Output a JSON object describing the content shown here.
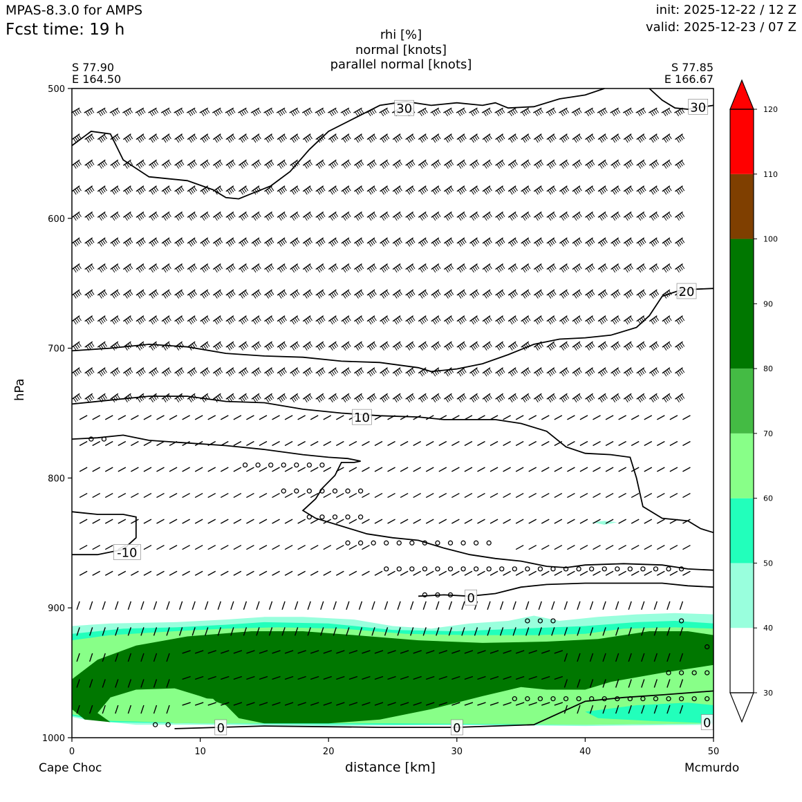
{
  "header": {
    "model": "MPAS-8.3.0 for AMPS",
    "fcst_time": "Fcst time:   19 h",
    "init": "init: 2025-12-22 / 12 Z",
    "valid": "valid: 2025-12-23 / 07 Z"
  },
  "title": {
    "line1": "rhi [%]",
    "line2": "normal [knots]",
    "line3": "parallel normal [knots]"
  },
  "endpoints": {
    "left_lat": "S 77.90",
    "left_lon": "E 164.50",
    "right_lat": "S 77.85",
    "right_lon": "E 166.67"
  },
  "locations": {
    "left": "Cape Choc",
    "right": "Mcmurdo"
  },
  "chart_data": {
    "type": "cross-section contour",
    "xlabel": "distance [km]",
    "ylabel": "hPa",
    "xlim": [
      0,
      50
    ],
    "ylim": [
      1000,
      500
    ],
    "x_ticks": [
      0,
      10,
      20,
      30,
      40,
      50
    ],
    "y_ticks": [
      500,
      600,
      700,
      800,
      900,
      1000
    ],
    "colorbar": {
      "ticks": [
        30,
        40,
        50,
        60,
        70,
        80,
        90,
        100,
        110,
        120
      ],
      "bins": [
        {
          "from": 30,
          "to": 40,
          "color": "#ffffff"
        },
        {
          "from": 40,
          "to": 50,
          "color": "#99ffdd"
        },
        {
          "from": 50,
          "to": 60,
          "color": "#22ffbb"
        },
        {
          "from": 60,
          "to": 70,
          "color": "#88ff88"
        },
        {
          "from": 70,
          "to": 80,
          "color": "#44bb44"
        },
        {
          "from": 80,
          "to": 100,
          "color": "#007700"
        },
        {
          "from": 100,
          "to": 110,
          "color": "#7f3f00"
        },
        {
          "from": 110,
          "to": 120,
          "color": "#ff0000"
        }
      ],
      "extend": "both"
    },
    "contour_labels": [
      {
        "text": "30",
        "x": 25.9,
        "p": 515
      },
      {
        "text": "30",
        "x": 48.8,
        "p": 514
      },
      {
        "text": "20",
        "x": 47.9,
        "p": 656
      },
      {
        "text": "10",
        "x": 22.6,
        "p": 753
      },
      {
        "text": "-10",
        "x": 4.3,
        "p": 857
      },
      {
        "text": "0",
        "x": 31.1,
        "p": 892
      },
      {
        "text": "0",
        "x": 11.6,
        "p": 992
      },
      {
        "text": "0",
        "x": 30.0,
        "p": 992
      },
      {
        "text": "0",
        "x": 49.5,
        "p": 988
      }
    ],
    "contours": [
      {
        "label": "30",
        "points": [
          [
            0,
            544
          ],
          [
            1.5,
            533
          ],
          [
            3,
            535
          ],
          [
            4,
            555
          ],
          [
            6,
            568
          ],
          [
            9,
            571
          ],
          [
            11,
            578
          ],
          [
            12,
            584
          ],
          [
            13,
            585
          ],
          [
            14,
            581
          ],
          [
            15.5,
            575
          ],
          [
            17,
            564
          ],
          [
            18.5,
            547
          ],
          [
            20,
            533
          ],
          [
            22,
            523
          ],
          [
            24,
            513
          ],
          [
            26,
            510
          ],
          [
            28,
            513
          ],
          [
            30,
            511
          ],
          [
            32,
            513
          ],
          [
            33,
            511
          ],
          [
            34,
            515
          ],
          [
            36,
            514
          ],
          [
            38,
            508
          ],
          [
            40,
            505
          ],
          [
            41.5,
            500
          ]
        ]
      },
      {
        "label": "30",
        "points": [
          [
            45,
            500
          ],
          [
            46,
            509
          ],
          [
            47,
            515
          ],
          [
            48,
            516
          ],
          [
            50,
            513
          ]
        ]
      },
      {
        "label": "20",
        "points": [
          [
            0,
            702
          ],
          [
            3,
            700
          ],
          [
            6,
            697
          ],
          [
            9,
            699
          ],
          [
            12,
            704
          ],
          [
            15,
            706
          ],
          [
            18,
            707
          ],
          [
            21,
            710
          ],
          [
            24,
            711
          ],
          [
            27,
            715
          ],
          [
            28,
            718
          ],
          [
            30,
            716
          ],
          [
            32,
            712
          ],
          [
            34,
            705
          ],
          [
            36,
            697
          ],
          [
            38,
            693
          ],
          [
            40,
            692
          ],
          [
            42,
            690
          ],
          [
            44,
            684
          ],
          [
            45,
            675
          ],
          [
            46,
            660
          ],
          [
            47.5,
            655
          ],
          [
            50,
            654
          ]
        ]
      },
      {
        "label": "10",
        "points": [
          [
            0,
            743
          ],
          [
            3,
            740
          ],
          [
            6,
            737
          ],
          [
            9,
            737
          ],
          [
            12,
            741
          ],
          [
            15,
            742
          ],
          [
            18,
            747
          ],
          [
            21,
            750
          ],
          [
            24,
            752
          ],
          [
            27,
            753
          ],
          [
            29,
            755
          ],
          [
            31,
            755
          ],
          [
            33,
            755
          ],
          [
            35,
            758
          ],
          [
            37,
            764
          ],
          [
            38.5,
            776
          ],
          [
            40,
            781
          ],
          [
            42,
            782
          ],
          [
            43.5,
            784
          ],
          [
            44,
            800
          ],
          [
            44.5,
            822
          ],
          [
            46,
            831
          ],
          [
            48,
            833
          ],
          [
            49,
            839
          ],
          [
            50,
            842
          ]
        ]
      },
      {
        "label": "-10",
        "points": [
          [
            0,
            770
          ],
          [
            2,
            769
          ],
          [
            4,
            767
          ],
          [
            6,
            771
          ],
          [
            9,
            773
          ],
          [
            12,
            775
          ],
          [
            15,
            778
          ],
          [
            18,
            782
          ],
          [
            20,
            784
          ],
          [
            21.5,
            785
          ],
          [
            22.5,
            787
          ],
          [
            22,
            788
          ],
          [
            21,
            788
          ],
          [
            20.5,
            798
          ],
          [
            19.5,
            808
          ],
          [
            19,
            816
          ],
          [
            18,
            825
          ],
          [
            19,
            831
          ],
          [
            21,
            837
          ],
          [
            23,
            843
          ],
          [
            25,
            846
          ],
          [
            27,
            848
          ],
          [
            29,
            854
          ],
          [
            31,
            859
          ],
          [
            33,
            862
          ],
          [
            35,
            864
          ],
          [
            37,
            868
          ],
          [
            38.5,
            869
          ],
          [
            40,
            867
          ],
          [
            43,
            866
          ],
          [
            46,
            867
          ],
          [
            48,
            870
          ],
          [
            50,
            871
          ]
        ]
      },
      {
        "label": "-10",
        "points": [
          [
            0,
            826
          ],
          [
            2,
            828
          ],
          [
            4,
            828
          ],
          [
            5,
            830
          ],
          [
            5,
            846
          ],
          [
            4,
            855
          ],
          [
            2,
            859
          ],
          [
            0,
            859
          ]
        ]
      },
      {
        "label": "0",
        "points": [
          [
            27,
            891
          ],
          [
            29,
            890
          ],
          [
            31,
            891
          ],
          [
            33,
            889
          ],
          [
            35,
            884
          ],
          [
            37,
            882
          ],
          [
            40,
            881
          ],
          [
            43,
            881
          ],
          [
            46,
            881
          ],
          [
            48,
            883
          ],
          [
            50,
            884
          ]
        ]
      },
      {
        "label": "0",
        "points": [
          [
            8,
            993
          ],
          [
            15,
            991
          ],
          [
            24,
            992
          ],
          [
            30,
            992
          ],
          [
            36,
            990
          ],
          [
            38,
            981
          ],
          [
            40,
            972
          ],
          [
            43,
            969
          ],
          [
            46,
            967
          ],
          [
            50,
            964
          ]
        ]
      }
    ],
    "rhi_regions": [
      {
        "level": "40-50",
        "color": "#99ffdd",
        "points": [
          [
            0,
            914
          ],
          [
            3,
            912
          ],
          [
            8,
            911
          ],
          [
            12,
            909
          ],
          [
            15,
            907
          ],
          [
            18,
            907
          ],
          [
            22,
            909
          ],
          [
            25,
            914
          ],
          [
            28,
            916
          ],
          [
            31,
            912
          ],
          [
            34,
            910
          ],
          [
            36,
            906
          ],
          [
            38,
            910
          ],
          [
            41,
            907
          ],
          [
            44,
            905
          ],
          [
            47,
            904
          ],
          [
            50,
            905
          ],
          [
            50,
            990
          ],
          [
            40,
            991
          ],
          [
            30,
            990
          ],
          [
            20,
            991
          ],
          [
            10,
            990
          ],
          [
            5,
            990
          ],
          [
            1,
            986
          ],
          [
            0,
            984
          ]
        ]
      },
      {
        "level": "50-60",
        "color": "#22ffbb",
        "points": [
          [
            0,
            920
          ],
          [
            4,
            916
          ],
          [
            8,
            915
          ],
          [
            12,
            913
          ],
          [
            15,
            911
          ],
          [
            20,
            912
          ],
          [
            25,
            917
          ],
          [
            30,
            918
          ],
          [
            35,
            916
          ],
          [
            40,
            914
          ],
          [
            44,
            911
          ],
          [
            47,
            910
          ],
          [
            50,
            912
          ],
          [
            50,
            989
          ],
          [
            40,
            990
          ],
          [
            25,
            990
          ],
          [
            10,
            989
          ],
          [
            3,
            988
          ],
          [
            0,
            983
          ]
        ]
      },
      {
        "level": "60-70",
        "color": "#88ff88",
        "points": [
          [
            0,
            925
          ],
          [
            3,
            921
          ],
          [
            8,
            918
          ],
          [
            12,
            916
          ],
          [
            16,
            915
          ],
          [
            21,
            916
          ],
          [
            26,
            920
          ],
          [
            31,
            921
          ],
          [
            36,
            921
          ],
          [
            40,
            920
          ],
          [
            43,
            916
          ],
          [
            47,
            915
          ],
          [
            50,
            916
          ],
          [
            50,
            989
          ],
          [
            40,
            990
          ],
          [
            25,
            989
          ],
          [
            10,
            989
          ],
          [
            3,
            987
          ],
          [
            0,
            982
          ]
        ]
      },
      {
        "level": "80-100",
        "color": "#007700",
        "points": [
          [
            0,
            955
          ],
          [
            2,
            940
          ],
          [
            5,
            929
          ],
          [
            9,
            922
          ],
          [
            14,
            918
          ],
          [
            18,
            918
          ],
          [
            22,
            921
          ],
          [
            27,
            925
          ],
          [
            32,
            927
          ],
          [
            37,
            926
          ],
          [
            41,
            924
          ],
          [
            45,
            918
          ],
          [
            48,
            918
          ],
          [
            50,
            921
          ],
          [
            50,
            944
          ],
          [
            46,
            950
          ],
          [
            42,
            957
          ],
          [
            40,
            963
          ],
          [
            37,
            963
          ],
          [
            35,
            961
          ],
          [
            32,
            968
          ],
          [
            30,
            973
          ],
          [
            28,
            978
          ],
          [
            24,
            986
          ],
          [
            20,
            989
          ],
          [
            15,
            989
          ],
          [
            13,
            985
          ],
          [
            12,
            975
          ],
          [
            10,
            968
          ],
          [
            8,
            962
          ],
          [
            5,
            963
          ],
          [
            3,
            969
          ],
          [
            2,
            981
          ],
          [
            3,
            988
          ],
          [
            1,
            986
          ],
          [
            0,
            978
          ]
        ]
      },
      {
        "level": "60-70",
        "color": "#88ff88",
        "points": [
          [
            7,
            975
          ],
          [
            9,
            969
          ],
          [
            11,
            970
          ],
          [
            12,
            980
          ],
          [
            11,
            988
          ],
          [
            8,
            989
          ],
          [
            6,
            983
          ]
        ]
      },
      {
        "level": "50-60",
        "color": "#22ffbb",
        "points": [
          [
            40,
            980
          ],
          [
            44,
            975
          ],
          [
            48,
            973
          ],
          [
            50,
            975
          ],
          [
            50,
            989
          ],
          [
            45,
            987
          ],
          [
            41,
            985
          ]
        ]
      },
      {
        "level": "40-50",
        "color": "#99ffdd",
        "points": [
          [
            40.5,
            834
          ],
          [
            41.5,
            833
          ],
          [
            42.5,
            834
          ],
          [
            41.5,
            836
          ]
        ]
      }
    ],
    "wind_rows_hPa": [
      515,
      535,
      555,
      575,
      595,
      615,
      635,
      655,
      675,
      695,
      715,
      735,
      755,
      775,
      795,
      815,
      835,
      855,
      875,
      895,
      915,
      935,
      955,
      975
    ]
  }
}
